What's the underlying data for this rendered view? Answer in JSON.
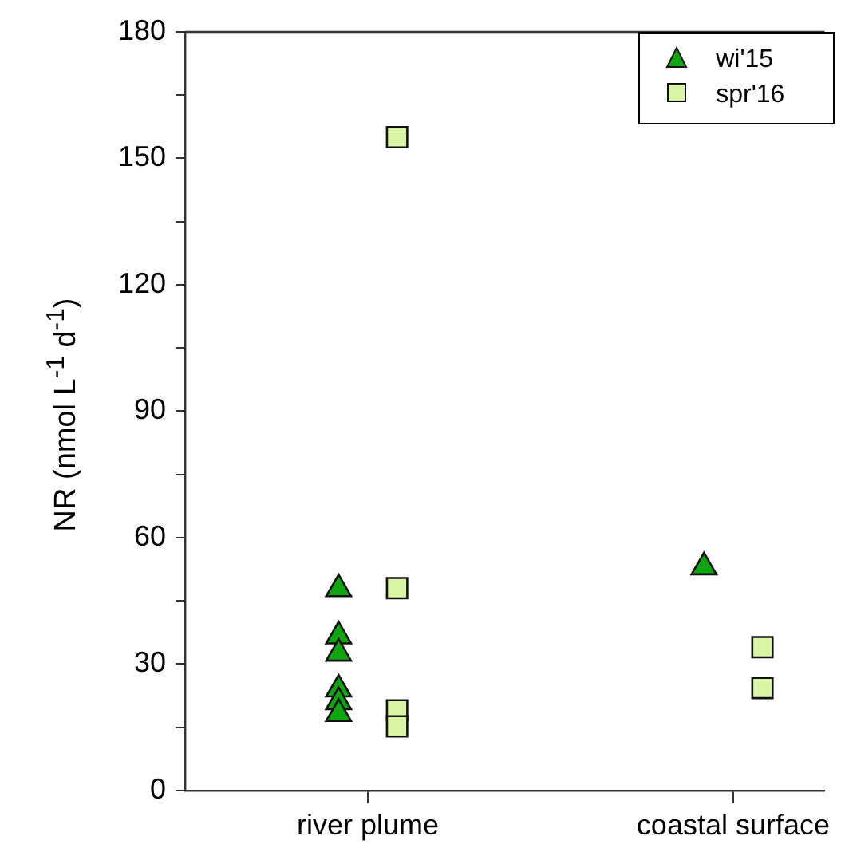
{
  "chart_data": {
    "type": "scatter",
    "ylabel": "NR (nmol L$^{-1}$ d$^{-1}$)",
    "categories": [
      "river plume",
      "coastal surface"
    ],
    "series": [
      {
        "name": "wi'15",
        "color": "#11a511",
        "marker": "triangle",
        "x": [
          "river plume",
          "river plume",
          "river plume",
          "river plume",
          "river plume",
          "river plume",
          "coastal surface"
        ],
        "values": [
          47.8,
          36.6,
          32.5,
          24,
          21,
          18.2,
          53
        ]
      },
      {
        "name": "spr'16",
        "color": "#d8f5a6",
        "marker": "square",
        "x": [
          "river plume",
          "river plume",
          "river plume",
          "river plume",
          "coastal surface",
          "coastal surface"
        ],
        "values": [
          155,
          48,
          19,
          15.2,
          34,
          24.3
        ]
      }
    ],
    "ylim": [
      0,
      180
    ],
    "yticks": [
      0,
      {
        "value": 15,
        "label": null
      },
      30,
      {
        "value": 45,
        "label": null
      },
      60,
      {
        "value": 75,
        "label": null
      },
      90,
      {
        "value": 105,
        "label": null
      },
      120,
      {
        "value": 135,
        "label": null
      },
      150,
      {
        "value": 165,
        "label": null
      },
      180
    ],
    "grid": false,
    "legend": "top right"
  }
}
